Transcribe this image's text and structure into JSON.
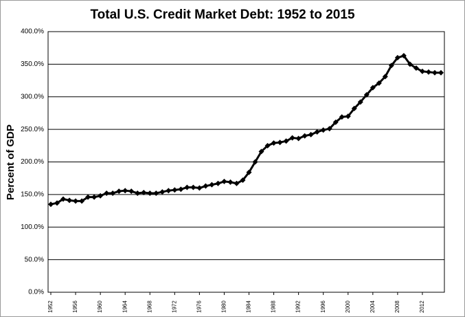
{
  "chart_data": {
    "type": "line",
    "title": "Total U.S. Credit Market Debt:  1952 to 2015",
    "y_label": "Percent of GDP",
    "x": [
      1952,
      1953,
      1954,
      1955,
      1956,
      1957,
      1958,
      1959,
      1960,
      1961,
      1962,
      1963,
      1964,
      1965,
      1966,
      1967,
      1968,
      1969,
      1970,
      1971,
      1972,
      1973,
      1974,
      1975,
      1976,
      1977,
      1978,
      1979,
      1980,
      1981,
      1982,
      1983,
      1984,
      1985,
      1986,
      1987,
      1988,
      1989,
      1990,
      1991,
      1992,
      1993,
      1994,
      1995,
      1996,
      1997,
      1998,
      1999,
      2000,
      2001,
      2002,
      2003,
      2004,
      2005,
      2006,
      2007,
      2008,
      2009,
      2010,
      2011,
      2012,
      2013,
      2014,
      2015
    ],
    "series": [
      {
        "name": "Percent of GDP",
        "color": "#000000",
        "values": [
          135,
          137,
          143,
          141,
          140,
          140,
          146,
          146,
          148,
          152,
          152,
          155,
          156,
          155,
          152,
          153,
          152,
          152,
          154,
          156,
          157,
          158,
          161,
          161,
          160,
          163,
          165,
          167,
          170,
          169,
          167,
          172,
          184,
          200,
          216,
          225,
          229,
          230,
          232,
          237,
          236,
          240,
          242,
          246,
          249,
          251,
          261,
          269,
          270,
          282,
          292,
          303,
          314,
          321,
          331,
          348,
          360,
          363,
          350,
          344,
          339,
          338,
          337,
          337
        ]
      }
    ],
    "xlim": [
      1952,
      2015
    ],
    "xticks": [
      1952,
      1956,
      1960,
      1964,
      1968,
      1972,
      1976,
      1980,
      1984,
      1988,
      1992,
      1996,
      2000,
      2004,
      2008,
      2012
    ],
    "ylim": [
      0,
      400
    ],
    "yticks": [
      {
        "value": 0,
        "label": "0.0%"
      },
      {
        "value": 50,
        "label": "50.0%"
      },
      {
        "value": 100,
        "label": "100.0%"
      },
      {
        "value": 150,
        "label": "150.0%"
      },
      {
        "value": 200,
        "label": "200.0%"
      },
      {
        "value": 250,
        "label": "250.0%"
      },
      {
        "value": 300,
        "label": "300.0%"
      },
      {
        "value": 350,
        "label": "350.0%"
      },
      {
        "value": 400,
        "label": "400.0%"
      }
    ],
    "grid": true
  }
}
